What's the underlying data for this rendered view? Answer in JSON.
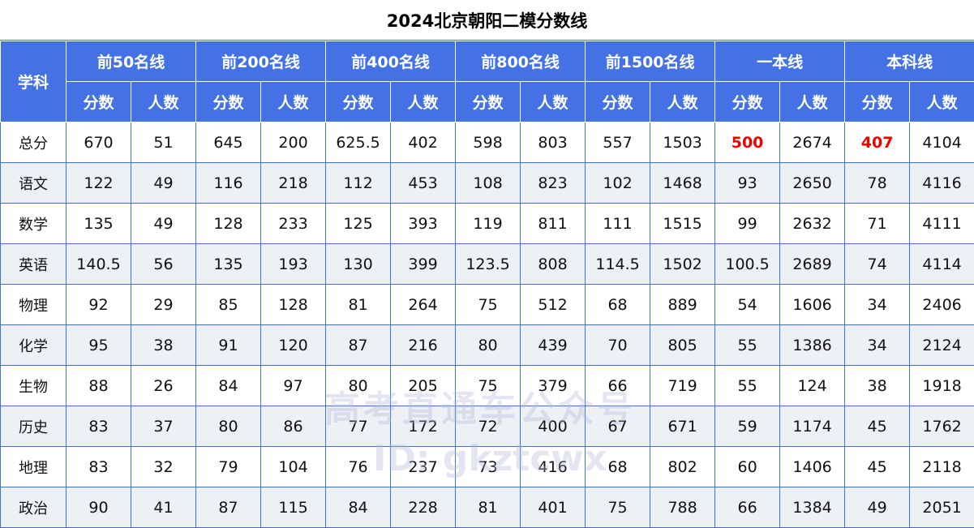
{
  "title": "2024北京朝阳二模分数线",
  "header": {
    "subject_label": "学科",
    "groups": [
      {
        "label": "前50名线"
      },
      {
        "label": "前200名线"
      },
      {
        "label": "前400名线"
      },
      {
        "label": "前800名线"
      },
      {
        "label": "前1500名线"
      },
      {
        "label": "一本线"
      },
      {
        "label": "本科线"
      }
    ],
    "sub": {
      "score": "分数",
      "count": "人数"
    }
  },
  "colors": {
    "header_bg": "#4472E4",
    "border": "#4472C4",
    "alt_row": "#EDF0F4",
    "highlight": "#ED0000"
  },
  "rows": [
    {
      "subject": "总分",
      "values": [
        "670",
        "51",
        "645",
        "200",
        "625.5",
        "402",
        "598",
        "803",
        "557",
        "1503",
        "500",
        "2674",
        "407",
        "4104"
      ]
    },
    {
      "subject": "语文",
      "values": [
        "122",
        "49",
        "116",
        "218",
        "112",
        "453",
        "108",
        "823",
        "102",
        "1468",
        "93",
        "2650",
        "78",
        "4116"
      ]
    },
    {
      "subject": "数学",
      "values": [
        "135",
        "49",
        "128",
        "233",
        "125",
        "393",
        "119",
        "811",
        "111",
        "1515",
        "99",
        "2632",
        "71",
        "4111"
      ]
    },
    {
      "subject": "英语",
      "values": [
        "140.5",
        "56",
        "135",
        "193",
        "130",
        "399",
        "123.5",
        "808",
        "114.5",
        "1502",
        "100.5",
        "2689",
        "74",
        "4114"
      ]
    },
    {
      "subject": "物理",
      "values": [
        "92",
        "29",
        "85",
        "128",
        "81",
        "264",
        "75",
        "512",
        "68",
        "889",
        "54",
        "1606",
        "34",
        "2406"
      ]
    },
    {
      "subject": "化学",
      "values": [
        "95",
        "38",
        "91",
        "120",
        "87",
        "216",
        "80",
        "439",
        "70",
        "805",
        "55",
        "1386",
        "34",
        "2124"
      ]
    },
    {
      "subject": "生物",
      "values": [
        "88",
        "26",
        "84",
        "97",
        "80",
        "205",
        "75",
        "379",
        "66",
        "719",
        "55",
        "124",
        "38",
        "1918"
      ]
    },
    {
      "subject": "历史",
      "values": [
        "83",
        "37",
        "80",
        "86",
        "77",
        "172",
        "72",
        "400",
        "67",
        "671",
        "59",
        "1174",
        "45",
        "1762"
      ]
    },
    {
      "subject": "地理",
      "values": [
        "83",
        "32",
        "79",
        "104",
        "76",
        "237",
        "73",
        "416",
        "68",
        "802",
        "60",
        "1406",
        "45",
        "2118"
      ]
    },
    {
      "subject": "政治",
      "values": [
        "90",
        "41",
        "87",
        "115",
        "84",
        "228",
        "81",
        "401",
        "75",
        "788",
        "66",
        "1384",
        "49",
        "2051"
      ]
    }
  ],
  "highlighted_cells": [
    {
      "row": 0,
      "col": 10
    },
    {
      "row": 0,
      "col": 12
    }
  ],
  "watermark": {
    "text": "高考直通车公众号",
    "id": "ID: gkztcwx"
  }
}
